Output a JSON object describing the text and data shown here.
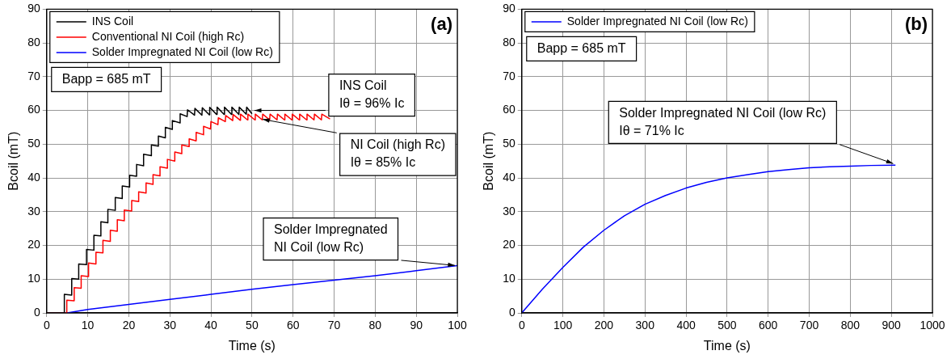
{
  "chart_data": [
    {
      "type": "line",
      "title": "(a)",
      "xlabel": "Time (s)",
      "ylabel": "Bcoil (mT)",
      "xlim": [
        0,
        100
      ],
      "xticks": [
        0,
        10,
        20,
        30,
        40,
        50,
        60,
        70,
        80,
        90,
        100
      ],
      "ylim": [
        0,
        90
      ],
      "yticks": [
        0,
        10,
        20,
        30,
        40,
        50,
        60,
        70,
        80,
        90
      ],
      "grid": true,
      "legend": "top left",
      "line_style": "solid",
      "marker": "none",
      "annotations": [
        "Bapp = 685 mT",
        {
          "text": "INS Coil\nIθ = 96% Ic",
          "x": 50,
          "y": 60
        },
        {
          "text": "NI Coil (high Rc)\nIθ = 85% Ic",
          "x": 52,
          "y": 57.5
        },
        {
          "text": "Solder Impregnated\nNI Coil (low Rc)",
          "x": 100,
          "y": 14
        }
      ],
      "series": [
        {
          "name": "INS Coil",
          "color": "#000000",
          "x": [
            0,
            4.3,
            4.3,
            6.1,
            6.1,
            7.8,
            7.8,
            9.7,
            9.7,
            11.5,
            11.5,
            13.2,
            13.2,
            14.9,
            14.9,
            16.7,
            16.7,
            18.4,
            18.4,
            20.2,
            20.2,
            21.9,
            21.9,
            23.6,
            23.6,
            25.5,
            25.5,
            27.2,
            27.2,
            28.9,
            28.9,
            30.6,
            30.6,
            32.5,
            32.5,
            34.2,
            34.3,
            36,
            36.1,
            37.8,
            37.9,
            39.6,
            39.7,
            41.4,
            41.5,
            43.2,
            43.3,
            45,
            45.1,
            46.8,
            46.9,
            48.6,
            48.7,
            50
          ],
          "values": [
            0,
            0,
            5.5,
            5.3,
            10.2,
            10,
            14.5,
            14.3,
            18.8,
            18.6,
            23,
            22.8,
            27,
            26.7,
            30.7,
            30.4,
            34.2,
            33.9,
            37.6,
            37.3,
            40.8,
            40.5,
            44,
            43.6,
            47,
            46.6,
            49.8,
            49.4,
            52.4,
            51.9,
            55,
            54.4,
            57,
            56.3,
            59,
            58.2,
            60.2,
            58.6,
            60.6,
            58.6,
            60.8,
            58.7,
            60.9,
            58.8,
            61,
            58.8,
            61,
            58.8,
            61,
            58.8,
            61,
            58.9,
            61,
            59
          ]
        },
        {
          "name": "Conventional NI Coil (high Rc)",
          "color": "#ff0000",
          "x": [
            0,
            4.9,
            4.9,
            6.7,
            6.7,
            8.4,
            8.4,
            10.2,
            10.2,
            12,
            12,
            13.7,
            13.7,
            15.5,
            15.5,
            17.2,
            17.2,
            18.9,
            18.9,
            20.7,
            20.7,
            22.4,
            22.4,
            24.2,
            24.2,
            25.9,
            25.9,
            27.6,
            27.6,
            29.4,
            29.4,
            31.2,
            31.2,
            32.9,
            32.9,
            34.7,
            34.7,
            36.4,
            36.4,
            38.2,
            38.2,
            39.9,
            40,
            41.7,
            41.8,
            43.5,
            43.6,
            45.3,
            45.4,
            47.1,
            47.2,
            48.9,
            49,
            50.7,
            50.8,
            52.5,
            52.6,
            54.3,
            54.4,
            56.1,
            56.2,
            57.9,
            58,
            59.7,
            59.8,
            61.5,
            61.6,
            63.3,
            63.4,
            65.1,
            65.2,
            66.9,
            67,
            69
          ],
          "values": [
            0,
            0,
            3.8,
            3.6,
            7.5,
            7.3,
            11,
            10.8,
            14.8,
            14.5,
            18,
            17.8,
            21.5,
            21.2,
            24.5,
            24.2,
            27.6,
            27.3,
            30.5,
            30.2,
            33.3,
            33,
            35.9,
            35.5,
            38.5,
            38.1,
            41,
            40.6,
            43.3,
            42.9,
            45.5,
            45,
            47.7,
            47.2,
            49.8,
            49.3,
            51.6,
            51,
            53.5,
            52.8,
            55.3,
            54.5,
            56.7,
            55.8,
            57.8,
            56.7,
            58.5,
            57,
            58.8,
            57.1,
            58.9,
            57.2,
            58.9,
            57.2,
            58.9,
            57.2,
            58.9,
            57.2,
            58.9,
            57.2,
            58.9,
            57.2,
            58.9,
            57.2,
            58.9,
            57.2,
            58.9,
            57.2,
            58.9,
            57.2,
            58.9,
            57.2,
            58.9,
            57.5
          ]
        },
        {
          "name": "Solder Impregnated NI Coil (low Rc)",
          "color": "#0000ff",
          "x": [
            0,
            5,
            10,
            20,
            30,
            40,
            50,
            60,
            70,
            80,
            90,
            100
          ],
          "values": [
            0,
            0,
            1,
            2.5,
            4,
            5.5,
            7,
            8.4,
            9.7,
            11,
            12.5,
            14
          ]
        }
      ]
    },
    {
      "type": "line",
      "title": "(b)",
      "xlabel": "Time (s)",
      "ylabel": "Bcoil (mT)",
      "xlim": [
        0,
        1000
      ],
      "xticks": [
        0,
        100,
        200,
        300,
        400,
        500,
        600,
        700,
        800,
        900,
        1000
      ],
      "ylim": [
        0,
        90
      ],
      "yticks": [
        0,
        10,
        20,
        30,
        40,
        50,
        60,
        70,
        80,
        90
      ],
      "grid": true,
      "legend": "top left",
      "line_style": "solid",
      "marker": "none",
      "annotations": [
        "Bapp = 685 mT",
        {
          "text": "Solder Impregnated NI Coil (low Rc)\nIθ = 71% Ic",
          "x": 910,
          "y": 44
        }
      ],
      "series": [
        {
          "name": "Solder Impregnated NI Coil (low Rc)",
          "color": "#0000ff",
          "x": [
            0,
            50,
            100,
            150,
            200,
            250,
            300,
            350,
            400,
            450,
            500,
            550,
            600,
            650,
            700,
            750,
            800,
            850,
            910
          ],
          "values": [
            0,
            7,
            13.5,
            19.5,
            24.5,
            28.8,
            32.2,
            34.8,
            37,
            38.7,
            40,
            41,
            41.9,
            42.5,
            43,
            43.3,
            43.5,
            43.7,
            43.8
          ]
        }
      ]
    }
  ]
}
